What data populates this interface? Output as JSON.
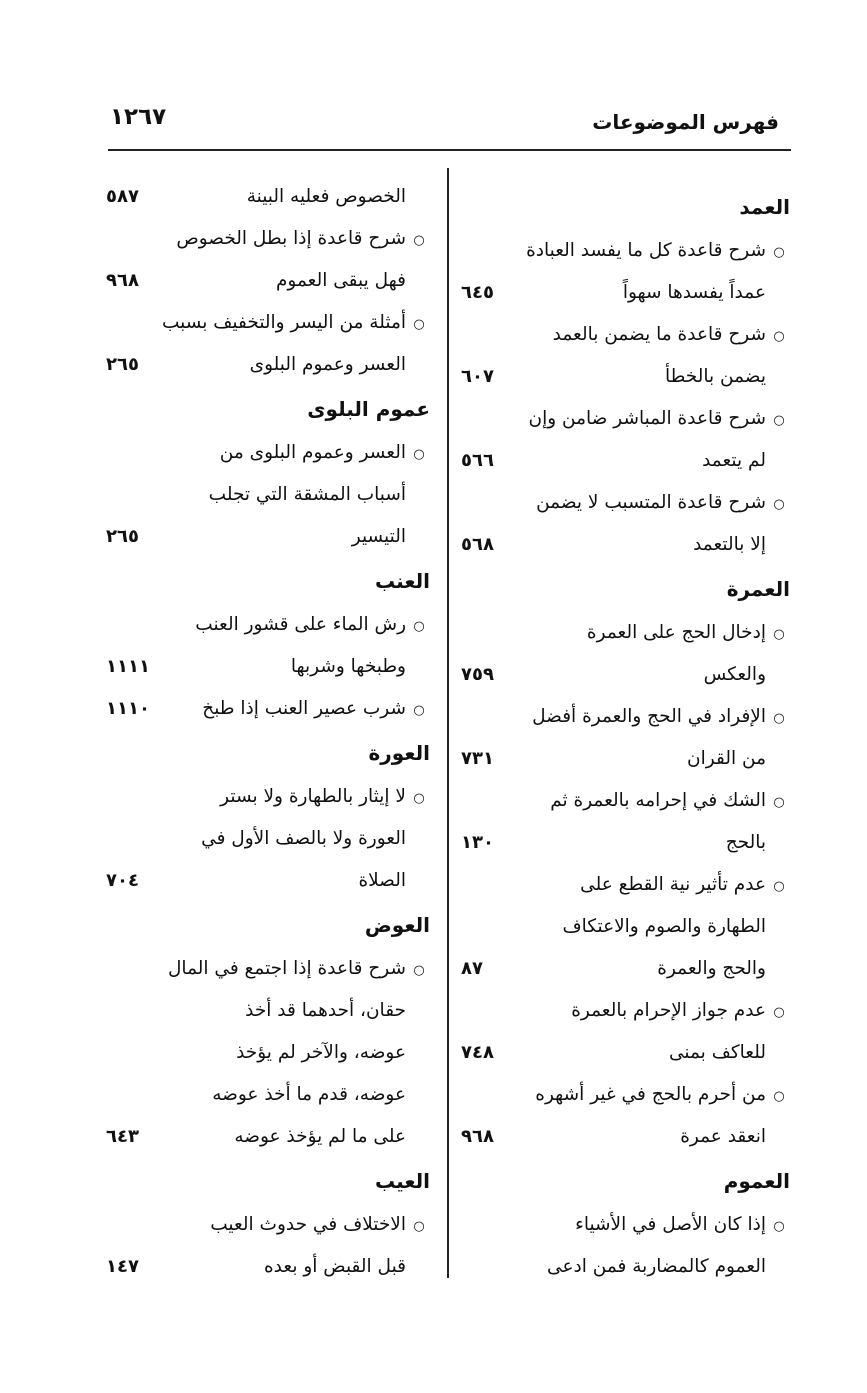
{
  "header": {
    "title": "فهرس الموضوعات",
    "page_number": "١٢٦٧"
  },
  "right_column": [
    {
      "type": "heading",
      "text": "العمد"
    },
    {
      "type": "entry",
      "lines": [
        "شرح قاعدة كل ما يفسد العبادة",
        "عمداً يفسدها سهواً"
      ],
      "page": "٦٤٥"
    },
    {
      "type": "entry",
      "lines": [
        "شرح قاعدة ما يضمن بالعمد",
        "يضمن بالخطأ"
      ],
      "page": "٦٠٧"
    },
    {
      "type": "entry",
      "lines": [
        "شرح قاعدة المباشر ضامن وإن",
        "لم يتعمد"
      ],
      "page": "٥٦٦"
    },
    {
      "type": "entry",
      "lines": [
        "شرح قاعدة المتسبب لا يضمن",
        "إلا بالتعمد"
      ],
      "page": "٥٦٨"
    },
    {
      "type": "heading",
      "text": "العمرة"
    },
    {
      "type": "entry",
      "lines": [
        "إدخال الحج على العمرة",
        "والعكس"
      ],
      "page": "٧٥٩"
    },
    {
      "type": "entry",
      "lines": [
        "الإفراد في الحج والعمرة أفضل",
        "من القران"
      ],
      "page": "٧٣١"
    },
    {
      "type": "entry",
      "lines": [
        "الشك في إحرامه بالعمرة ثم",
        "بالحج"
      ],
      "page": "١٣٠"
    },
    {
      "type": "entry",
      "lines": [
        "عدم تأثير نية القطع على",
        "الطهارة والصوم والاعتكاف",
        "والحج والعمرة"
      ],
      "page": "٨٧"
    },
    {
      "type": "entry",
      "lines": [
        "عدم جواز الإحرام بالعمرة",
        "للعاكف بمنى"
      ],
      "page": "٧٤٨"
    },
    {
      "type": "entry",
      "lines": [
        "من أحرم بالحج في غير أشهره",
        "انعقد عمرة"
      ],
      "page": "٩٦٨"
    },
    {
      "type": "heading",
      "text": "العموم"
    },
    {
      "type": "entry",
      "lines": [
        "إذا كان الأصل في الأشياء",
        "العموم كالمضاربة فمن ادعى"
      ],
      "page": ""
    }
  ],
  "left_column": [
    {
      "type": "continuation",
      "lines": [
        "الخصوص فعليه البينة"
      ],
      "page": "٥٨٧"
    },
    {
      "type": "entry",
      "lines": [
        "شرح قاعدة إذا بطل الخصوص",
        "فهل يبقى العموم"
      ],
      "page": "٩٦٨"
    },
    {
      "type": "entry",
      "lines": [
        "أمثلة من اليسر والتخفيف بسبب",
        "العسر وعموم البلوى"
      ],
      "page": "٢٦٥"
    },
    {
      "type": "heading",
      "text": "عموم البلوى"
    },
    {
      "type": "entry",
      "lines": [
        "العسر وعموم البلوى من",
        "أسباب المشقة التي تجلب",
        "التيسير"
      ],
      "page": "٢٦٥"
    },
    {
      "type": "heading",
      "text": "العنب"
    },
    {
      "type": "entry",
      "lines": [
        "رش الماء على قشور العنب",
        "وطبخها وشربها"
      ],
      "page": "١١١١"
    },
    {
      "type": "entry",
      "lines": [
        "شرب عصير العنب إذا طبخ"
      ],
      "page": "١١١٠"
    },
    {
      "type": "heading",
      "text": "العورة"
    },
    {
      "type": "entry",
      "lines": [
        "لا إيثار بالطهارة ولا بستر",
        "العورة ولا بالصف الأول في",
        "الصلاة"
      ],
      "page": "٧٠٤"
    },
    {
      "type": "heading",
      "text": "العوض"
    },
    {
      "type": "entry",
      "lines": [
        "شرح قاعدة إذا اجتمع في المال",
        "حقان، أحدهما قد أخذ",
        "عوضه، والآخر لم يؤخذ",
        "عوضه، قدم ما أخذ عوضه",
        "على ما لم يؤخذ عوضه"
      ],
      "page": "٦٤٣"
    },
    {
      "type": "heading",
      "text": "العيب"
    },
    {
      "type": "entry",
      "lines": [
        "الاختلاف في حدوث العيب",
        "قبل القبض أو بعده"
      ],
      "page": "١٤٧"
    }
  ]
}
